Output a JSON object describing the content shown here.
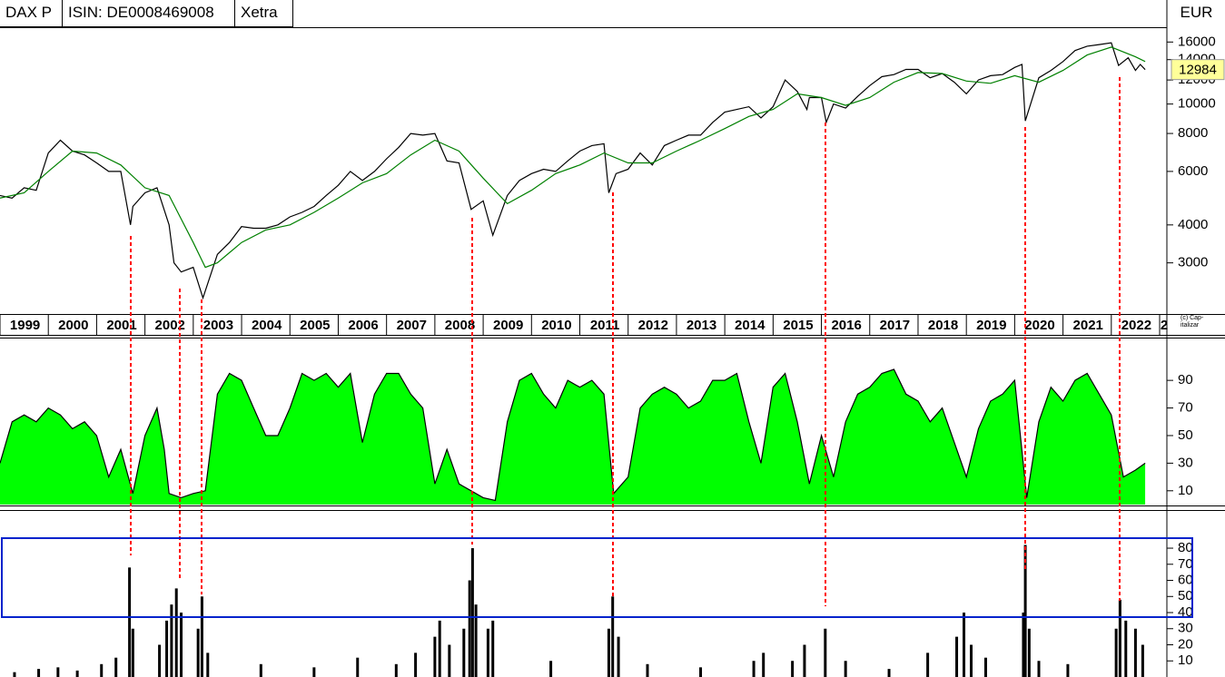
{
  "header": {
    "symbol": "DAX P",
    "isin": "ISIN: DE0008469008",
    "exchange": "Xetra",
    "currency": "EUR",
    "copyright": "(c) Cap-italizar"
  },
  "chart_data": [
    {
      "type": "line",
      "log_scale": true,
      "xlim": [
        1999,
        2023.15
      ],
      "ylim": [
        2050,
        17900
      ],
      "yticks": [
        3000,
        4000,
        6000,
        8000,
        10000,
        12000,
        14000,
        16000
      ],
      "xticks": [
        1999,
        2000,
        2001,
        2002,
        2003,
        2004,
        2005,
        2006,
        2007,
        2008,
        2009,
        2010,
        2011,
        2012,
        2013,
        2014,
        2015,
        2016,
        2017,
        2018,
        2019,
        2020,
        2021,
        2022,
        {
          "value": 2023,
          "label": "2"
        }
      ],
      "last_value": 12984,
      "series": [
        {
          "color": "#000000",
          "x": [
            1999.0,
            1999.25,
            1999.5,
            1999.75,
            2000.0,
            2000.25,
            2000.5,
            2000.75,
            2001.0,
            2001.25,
            2001.5,
            2001.7,
            2001.75,
            2002.0,
            2002.25,
            2002.5,
            2002.6,
            2002.75,
            2003.0,
            2003.2,
            2003.5,
            2003.75,
            2004.0,
            2004.25,
            2004.5,
            2004.75,
            2005.0,
            2005.25,
            2005.5,
            2005.75,
            2006.0,
            2006.25,
            2006.5,
            2006.75,
            2007.0,
            2007.25,
            2007.5,
            2007.75,
            2008.0,
            2008.25,
            2008.5,
            2008.75,
            2009.0,
            2009.2,
            2009.5,
            2009.75,
            2010.0,
            2010.25,
            2010.5,
            2010.75,
            2011.0,
            2011.25,
            2011.5,
            2011.6,
            2011.75,
            2012.0,
            2012.25,
            2012.5,
            2012.75,
            2013.0,
            2013.25,
            2013.5,
            2013.75,
            2014.0,
            2014.25,
            2014.5,
            2014.75,
            2015.0,
            2015.25,
            2015.5,
            2015.7,
            2015.75,
            2016.0,
            2016.1,
            2016.25,
            2016.5,
            2016.75,
            2017.0,
            2017.25,
            2017.5,
            2017.75,
            2018.0,
            2018.25,
            2018.5,
            2018.75,
            2019.0,
            2019.25,
            2019.5,
            2019.75,
            2020.0,
            2020.15,
            2020.22,
            2020.5,
            2020.75,
            2021.0,
            2021.25,
            2021.5,
            2021.75,
            2022.0,
            2022.15,
            2022.35,
            2022.5,
            2022.6,
            2022.7
          ],
          "values": [
            5000,
            4900,
            5300,
            5200,
            6900,
            7600,
            7000,
            6800,
            6400,
            6000,
            6000,
            4000,
            4600,
            5100,
            5300,
            4000,
            3000,
            2800,
            2900,
            2300,
            3200,
            3500,
            3950,
            3900,
            3900,
            4000,
            4250,
            4400,
            4600,
            5000,
            5400,
            6000,
            5600,
            6000,
            6600,
            7200,
            8000,
            7900,
            8000,
            6500,
            6400,
            4500,
            4800,
            3700,
            5000,
            5600,
            5900,
            6100,
            6000,
            6500,
            7000,
            7300,
            7400,
            5100,
            5900,
            6100,
            6900,
            6300,
            7300,
            7600,
            7900,
            7900,
            8700,
            9400,
            9600,
            9800,
            9000,
            9800,
            12000,
            11000,
            9600,
            10500,
            10500,
            8700,
            10000,
            9700,
            10600,
            11500,
            12300,
            12500,
            13000,
            13000,
            12200,
            12600,
            11800,
            10800,
            12000,
            12400,
            12500,
            13200,
            13500,
            8800,
            12200,
            12900,
            13800,
            15000,
            15500,
            15700,
            15900,
            13400,
            14200,
            12900,
            13500,
            12984
          ]
        },
        {
          "color": "#008000",
          "x": [
            1999.0,
            1999.5,
            2000.0,
            2000.5,
            2001.0,
            2001.5,
            2002.0,
            2002.5,
            2003.0,
            2003.25,
            2003.5,
            2004.0,
            2004.5,
            2005.0,
            2005.5,
            2006.0,
            2006.5,
            2007.0,
            2007.5,
            2008.0,
            2008.5,
            2009.0,
            2009.5,
            2010.0,
            2010.5,
            2011.0,
            2011.5,
            2012.0,
            2012.5,
            2013.0,
            2013.5,
            2014.0,
            2014.5,
            2015.0,
            2015.5,
            2016.0,
            2016.5,
            2017.0,
            2017.5,
            2018.0,
            2018.5,
            2019.0,
            2019.5,
            2020.0,
            2020.5,
            2021.0,
            2021.5,
            2022.0,
            2022.5,
            2022.7
          ],
          "values": [
            4900,
            5100,
            6000,
            7000,
            6900,
            6300,
            5300,
            5000,
            3500,
            2900,
            3000,
            3500,
            3850,
            4000,
            4400,
            4900,
            5500,
            5900,
            6800,
            7600,
            7000,
            5700,
            4700,
            5200,
            5900,
            6300,
            6900,
            6400,
            6400,
            7000,
            7600,
            8300,
            9100,
            9600,
            10800,
            10500,
            9900,
            10500,
            11800,
            12700,
            12600,
            11900,
            11700,
            12400,
            11800,
            12900,
            14500,
            15400,
            14300,
            13800
          ]
        }
      ]
    },
    {
      "type": "area",
      "xlim": [
        1999,
        2023.15
      ],
      "ylim": [
        0,
        121
      ],
      "yticks": [
        10,
        30,
        50,
        70,
        90
      ],
      "color": "#00ff00",
      "x": [
        1999.0,
        1999.25,
        1999.5,
        1999.75,
        2000.0,
        2000.25,
        2000.5,
        2000.75,
        2001.0,
        2001.25,
        2001.5,
        2001.75,
        2002.0,
        2002.25,
        2002.4,
        2002.5,
        2002.75,
        2003.0,
        2003.25,
        2003.5,
        2003.75,
        2004.0,
        2004.25,
        2004.5,
        2004.75,
        2005.0,
        2005.25,
        2005.5,
        2005.75,
        2006.0,
        2006.25,
        2006.5,
        2006.75,
        2007.0,
        2007.25,
        2007.5,
        2007.75,
        2008.0,
        2008.25,
        2008.5,
        2008.75,
        2009.0,
        2009.25,
        2009.5,
        2009.75,
        2010.0,
        2010.25,
        2010.5,
        2010.75,
        2011.0,
        2011.25,
        2011.5,
        2011.7,
        2012.0,
        2012.25,
        2012.5,
        2012.75,
        2013.0,
        2013.25,
        2013.5,
        2013.75,
        2014.0,
        2014.25,
        2014.5,
        2014.75,
        2015.0,
        2015.25,
        2015.5,
        2015.75,
        2016.0,
        2016.25,
        2016.5,
        2016.75,
        2017.0,
        2017.25,
        2017.5,
        2017.75,
        2018.0,
        2018.25,
        2018.5,
        2018.75,
        2019.0,
        2019.25,
        2019.5,
        2019.75,
        2020.0,
        2020.25,
        2020.5,
        2020.75,
        2021.0,
        2021.25,
        2021.5,
        2021.75,
        2022.0,
        2022.25,
        2022.5,
        2022.7
      ],
      "values": [
        30,
        60,
        65,
        60,
        70,
        65,
        55,
        60,
        50,
        20,
        40,
        8,
        50,
        70,
        40,
        8,
        5,
        8,
        10,
        80,
        95,
        90,
        70,
        50,
        50,
        70,
        95,
        90,
        95,
        85,
        95,
        45,
        80,
        95,
        95,
        80,
        70,
        15,
        40,
        15,
        10,
        5,
        3,
        60,
        90,
        95,
        80,
        70,
        90,
        85,
        90,
        80,
        8,
        20,
        70,
        80,
        85,
        80,
        70,
        75,
        90,
        90,
        95,
        60,
        30,
        85,
        95,
        60,
        15,
        50,
        20,
        60,
        80,
        85,
        95,
        98,
        80,
        75,
        60,
        70,
        45,
        20,
        55,
        75,
        80,
        90,
        5,
        60,
        85,
        75,
        90,
        95,
        80,
        65,
        20,
        25,
        30
      ]
    },
    {
      "type": "bar",
      "xlim": [
        1999,
        2023.15
      ],
      "ylim": [
        0,
        102
      ],
      "yticks": [
        10,
        20,
        30,
        40,
        50,
        60,
        70,
        80
      ],
      "color": "#000000",
      "x": [
        1999.3,
        1999.8,
        2000.2,
        2000.6,
        2001.1,
        2001.4,
        2001.68,
        2001.75,
        2002.3,
        2002.45,
        2002.55,
        2002.65,
        2002.75,
        2003.1,
        2003.18,
        2003.3,
        2004.4,
        2005.5,
        2006.4,
        2007.2,
        2007.6,
        2008.0,
        2008.1,
        2008.3,
        2008.6,
        2008.72,
        2008.78,
        2008.85,
        2009.1,
        2009.2,
        2010.4,
        2011.6,
        2011.68,
        2011.8,
        2012.4,
        2013.5,
        2014.6,
        2014.8,
        2015.4,
        2015.65,
        2016.08,
        2016.5,
        2017.4,
        2018.2,
        2018.8,
        2018.95,
        2019.1,
        2019.4,
        2020.18,
        2020.22,
        2020.3,
        2020.5,
        2021.1,
        2022.1,
        2022.18,
        2022.3,
        2022.5,
        2022.65
      ],
      "values": [
        3,
        5,
        6,
        4,
        8,
        12,
        68,
        30,
        20,
        35,
        45,
        55,
        40,
        30,
        50,
        15,
        8,
        6,
        12,
        8,
        15,
        25,
        35,
        20,
        30,
        60,
        80,
        45,
        30,
        35,
        10,
        30,
        50,
        25,
        8,
        6,
        10,
        15,
        10,
        20,
        30,
        10,
        5,
        15,
        25,
        40,
        20,
        12,
        40,
        82,
        30,
        10,
        8,
        30,
        48,
        35,
        30,
        20
      ]
    }
  ]
}
